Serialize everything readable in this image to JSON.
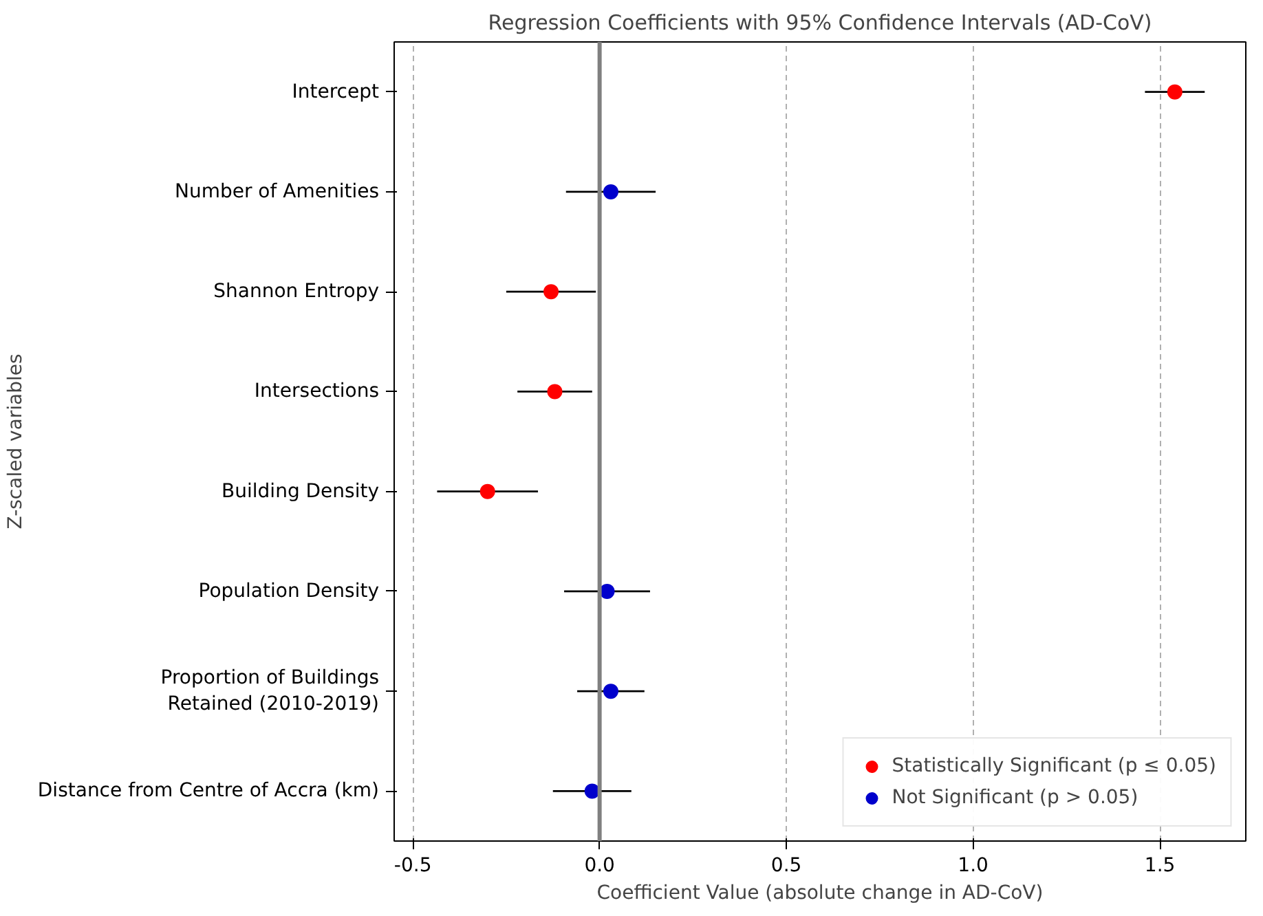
{
  "chart_data": {
    "type": "scatter",
    "orientation": "horizontal",
    "title": "Regression Coefficients with 95% Confidence Intervals (AD-CoV)",
    "xlabel": "Coefficient Value (absolute change in AD-CoV)",
    "ylabel": "Z-scaled variables",
    "categories": [
      "Intercept",
      "Number of Amenities",
      "Shannon Entropy",
      "Intersections",
      "Building Density",
      "Population Density",
      "Proportion of Buildings\nRetained (2010-2019)",
      "Distance from Centre of Accra (km)"
    ],
    "series": [
      {
        "name": "Statistically Significant (p ≤ 0.05)",
        "color": "#ff0000",
        "values": [
          1.54,
          null,
          -0.13,
          -0.12,
          -0.3,
          null,
          null,
          null
        ],
        "errors": [
          0.08,
          null,
          0.12,
          0.1,
          0.135,
          null,
          null,
          null
        ]
      },
      {
        "name": "Not Significant (p > 0.05)",
        "color": "#0000cc",
        "values": [
          null,
          0.03,
          null,
          null,
          null,
          0.02,
          0.03,
          -0.02
        ],
        "errors": [
          null,
          0.12,
          null,
          null,
          null,
          0.115,
          0.09,
          0.105
        ]
      }
    ],
    "xlim": [
      -0.55,
      1.73
    ],
    "xticks": [
      -0.5,
      {
        "value": 0,
        "label": "0.0"
      },
      0.5,
      {
        "value": 1,
        "label": "1.0"
      },
      1.5
    ],
    "ref_lines": [
      {
        "axis": "x",
        "value": 0,
        "color": "#808080"
      }
    ],
    "grid": "x",
    "legend": "bottom right",
    "marker": "circle"
  }
}
